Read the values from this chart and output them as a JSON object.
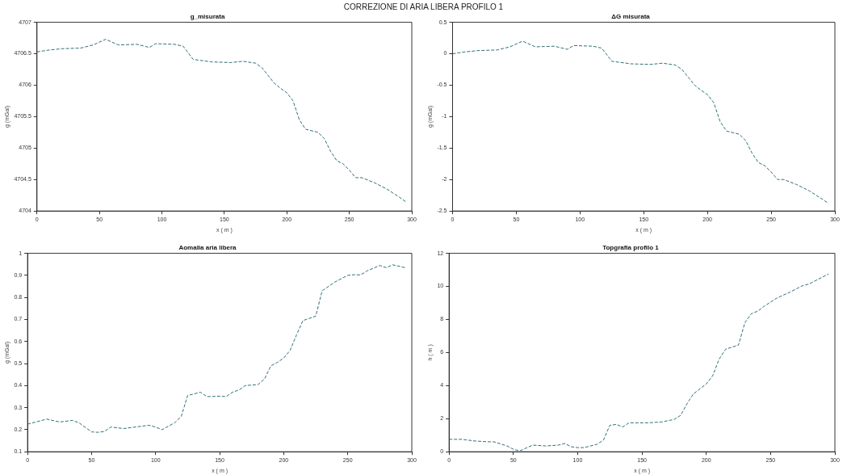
{
  "chart_data": [
    {
      "type": "line",
      "title": "g_misurata",
      "xlabel": "x ( m )",
      "ylabel": "g (mGal)",
      "annotations": [
        "CORREZIONE DI ARIA LIBERA PROFILO 1"
      ],
      "xlim": [
        0,
        300
      ],
      "xticks": [
        0,
        50,
        100,
        150,
        200,
        250,
        300
      ],
      "ylim": [
        4704,
        4707
      ],
      "yticks": [
        4704,
        4704.5,
        4705,
        4705.5,
        4706,
        4706.5,
        4707
      ],
      "line_style": "dashed",
      "marker": "none",
      "x": [
        0,
        10,
        20,
        35,
        45,
        55,
        65,
        80,
        90,
        95,
        110,
        117,
        125,
        140,
        155,
        165,
        175,
        180,
        190,
        195,
        200,
        205,
        210,
        215,
        225,
        230,
        235,
        240,
        245,
        250,
        255,
        260,
        270,
        280,
        290,
        295
      ],
      "series": [
        {
          "color": "#2f6f78",
          "values": [
            4706.53,
            4706.56,
            4706.58,
            4706.59,
            4706.64,
            4706.73,
            4706.64,
            4706.65,
            4706.6,
            4706.66,
            4706.65,
            4706.62,
            4706.41,
            4706.37,
            4706.36,
            4706.38,
            4706.35,
            4706.28,
            4706.03,
            4705.95,
            4705.88,
            4705.75,
            4705.45,
            4705.3,
            4705.25,
            4705.15,
            4704.95,
            4704.8,
            4704.75,
            4704.65,
            4704.53,
            4704.53,
            4704.45,
            4704.35,
            4704.22,
            4704.15
          ]
        }
      ]
    },
    {
      "type": "line",
      "title": "ΔG misurata",
      "xlabel": "x ( m )",
      "ylabel": "g (mGal)",
      "xlim": [
        0,
        300
      ],
      "xticks": [
        0,
        50,
        100,
        150,
        200,
        250,
        300
      ],
      "ylim": [
        -2.5,
        0.5
      ],
      "yticks": [
        -2.5,
        -2,
        -1.5,
        -1,
        -0.5,
        0,
        0.5
      ],
      "line_style": "dashed",
      "marker": "none",
      "x": [
        0,
        10,
        20,
        35,
        45,
        55,
        65,
        80,
        90,
        95,
        110,
        117,
        125,
        140,
        155,
        165,
        175,
        180,
        190,
        195,
        200,
        205,
        210,
        215,
        225,
        230,
        235,
        240,
        245,
        250,
        255,
        260,
        270,
        280,
        290,
        295
      ],
      "series": [
        {
          "color": "#2f6f78",
          "values": [
            0,
            0.03,
            0.05,
            0.06,
            0.11,
            0.2,
            0.11,
            0.12,
            0.07,
            0.13,
            0.12,
            0.09,
            -0.12,
            -0.16,
            -0.17,
            -0.15,
            -0.18,
            -0.25,
            -0.5,
            -0.58,
            -0.65,
            -0.78,
            -1.08,
            -1.23,
            -1.28,
            -1.38,
            -1.58,
            -1.73,
            -1.78,
            -1.88,
            -2.0,
            -2.0,
            -2.08,
            -2.18,
            -2.31,
            -2.38
          ]
        }
      ]
    },
    {
      "type": "line",
      "title": "Aomalia aria libera",
      "xlabel": "x ( m )",
      "ylabel": "g (mGal)",
      "xlim": [
        0,
        300
      ],
      "xticks": [
        0,
        50,
        100,
        150,
        200,
        250,
        300
      ],
      "ylim": [
        0.1,
        1
      ],
      "yticks": [
        0.1,
        0.2,
        0.3,
        0.4,
        0.5,
        0.6,
        0.7,
        0.8,
        0.9,
        1
      ],
      "line_style": "dashed",
      "marker": "none",
      "x": [
        0,
        15,
        25,
        35,
        40,
        50,
        55,
        60,
        65,
        75,
        85,
        95,
        100,
        105,
        115,
        120,
        125,
        135,
        140,
        150,
        155,
        160,
        165,
        170,
        180,
        185,
        190,
        195,
        200,
        205,
        210,
        215,
        220,
        225,
        230,
        240,
        250,
        255,
        260,
        265,
        275,
        280,
        285,
        295
      ],
      "series": [
        {
          "color": "#2f6f78",
          "values": [
            0.225,
            0.248,
            0.235,
            0.242,
            0.232,
            0.19,
            0.188,
            0.192,
            0.212,
            0.205,
            0.213,
            0.22,
            0.212,
            0.2,
            0.232,
            0.26,
            0.355,
            0.37,
            0.35,
            0.352,
            0.35,
            0.37,
            0.38,
            0.4,
            0.405,
            0.43,
            0.49,
            0.505,
            0.525,
            0.56,
            0.63,
            0.695,
            0.705,
            0.715,
            0.83,
            0.87,
            0.9,
            0.903,
            0.902,
            0.92,
            0.945,
            0.935,
            0.948,
            0.935
          ]
        }
      ]
    },
    {
      "type": "line",
      "title": "Topgrafia profilo 1",
      "xlabel": "x ( m )",
      "ylabel": "h ( m )",
      "xlim": [
        0,
        300
      ],
      "xticks": [
        0,
        50,
        100,
        150,
        200,
        250,
        300
      ],
      "ylim": [
        0,
        12
      ],
      "yticks": [
        0,
        2,
        4,
        6,
        8,
        10,
        12
      ],
      "line_style": "dashed",
      "marker": "none",
      "x": [
        0,
        10,
        20,
        30,
        35,
        45,
        50,
        55,
        65,
        75,
        85,
        90,
        95,
        100,
        105,
        115,
        120,
        125,
        130,
        135,
        140,
        155,
        165,
        175,
        180,
        185,
        190,
        200,
        205,
        210,
        215,
        225,
        230,
        235,
        240,
        245,
        255,
        265,
        275,
        280,
        295
      ],
      "series": [
        {
          "color": "#2f6f78",
          "values": [
            0.75,
            0.75,
            0.65,
            0.6,
            0.6,
            0.35,
            0.15,
            0.05,
            0.4,
            0.35,
            0.4,
            0.5,
            0.3,
            0.25,
            0.25,
            0.45,
            0.7,
            1.6,
            1.65,
            1.5,
            1.75,
            1.75,
            1.8,
            1.95,
            2.2,
            2.9,
            3.5,
            4.1,
            4.6,
            5.6,
            6.2,
            6.45,
            7.8,
            8.35,
            8.5,
            8.8,
            9.3,
            9.65,
            10.05,
            10.15,
            10.75
          ]
        }
      ]
    }
  ]
}
